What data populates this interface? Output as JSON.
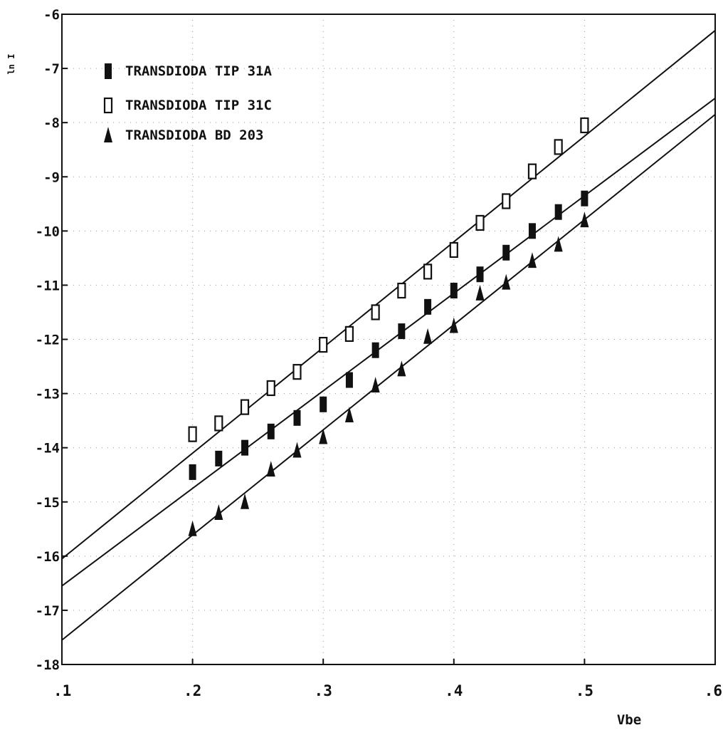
{
  "chart_data": {
    "type": "scatter",
    "title": "",
    "xlabel": "Vbe",
    "ylabel": "ln I",
    "xlim": [
      0.1,
      0.6
    ],
    "ylim": [
      -18,
      -6
    ],
    "x_ticks": [
      0.1,
      0.2,
      0.3,
      0.4,
      0.5,
      0.6
    ],
    "x_tick_labels": [
      ".1",
      ".2",
      ".3",
      ".4",
      ".5",
      ".6"
    ],
    "y_ticks": [
      -6,
      -7,
      -8,
      -9,
      -10,
      -11,
      -12,
      -13,
      -14,
      -15,
      -16,
      -17,
      -18
    ],
    "y_tick_labels": [
      "-6",
      "-7",
      "-8",
      "-9",
      "-10",
      "-11",
      "-12",
      "-13",
      "-14",
      "-15",
      "-16",
      "-17",
      "-18"
    ],
    "grid": true,
    "legend_position": "top-left",
    "series": [
      {
        "name": "TRANSDIODA TIP 31A",
        "marker": "filled-square",
        "color": "#111111",
        "x": [
          0.2,
          0.22,
          0.24,
          0.26,
          0.28,
          0.3,
          0.32,
          0.34,
          0.36,
          0.38,
          0.4,
          0.42,
          0.44,
          0.46,
          0.48,
          0.5
        ],
        "y": [
          -14.45,
          -14.2,
          -14.0,
          -13.7,
          -13.45,
          -13.2,
          -12.75,
          -12.2,
          -11.85,
          -11.4,
          -11.1,
          -10.8,
          -10.4,
          -10.0,
          -9.65,
          -9.4
        ],
        "fit_line": {
          "x": [
            0.1,
            0.6
          ],
          "y": [
            -16.55,
            -7.55
          ]
        }
      },
      {
        "name": "TRANSDIODA TIP 31C",
        "marker": "open-square",
        "color": "#111111",
        "x": [
          0.2,
          0.22,
          0.24,
          0.26,
          0.28,
          0.3,
          0.32,
          0.34,
          0.36,
          0.38,
          0.4,
          0.42,
          0.44,
          0.46,
          0.48,
          0.5
        ],
        "y": [
          -13.75,
          -13.55,
          -13.25,
          -12.9,
          -12.6,
          -12.1,
          -11.9,
          -11.5,
          -11.1,
          -10.75,
          -10.35,
          -9.85,
          -9.45,
          -8.9,
          -8.45,
          -8.05
        ],
        "fit_line": {
          "x": [
            0.1,
            0.6
          ],
          "y": [
            -16.05,
            -6.3
          ]
        }
      },
      {
        "name": "TRANSDIODA BD  203",
        "marker": "filled-triangle",
        "color": "#111111",
        "x": [
          0.2,
          0.22,
          0.24,
          0.26,
          0.28,
          0.3,
          0.32,
          0.34,
          0.36,
          0.38,
          0.4,
          0.42,
          0.44,
          0.46,
          0.48,
          0.5
        ],
        "y": [
          -15.5,
          -15.2,
          -15.0,
          -14.4,
          -14.05,
          -13.8,
          -13.4,
          -12.85,
          -12.55,
          -11.95,
          -11.75,
          -11.15,
          -10.95,
          -10.55,
          -10.25,
          -9.8
        ],
        "fit_line": {
          "x": [
            0.1,
            0.6
          ],
          "y": [
            -17.55,
            -7.85
          ]
        }
      }
    ]
  }
}
